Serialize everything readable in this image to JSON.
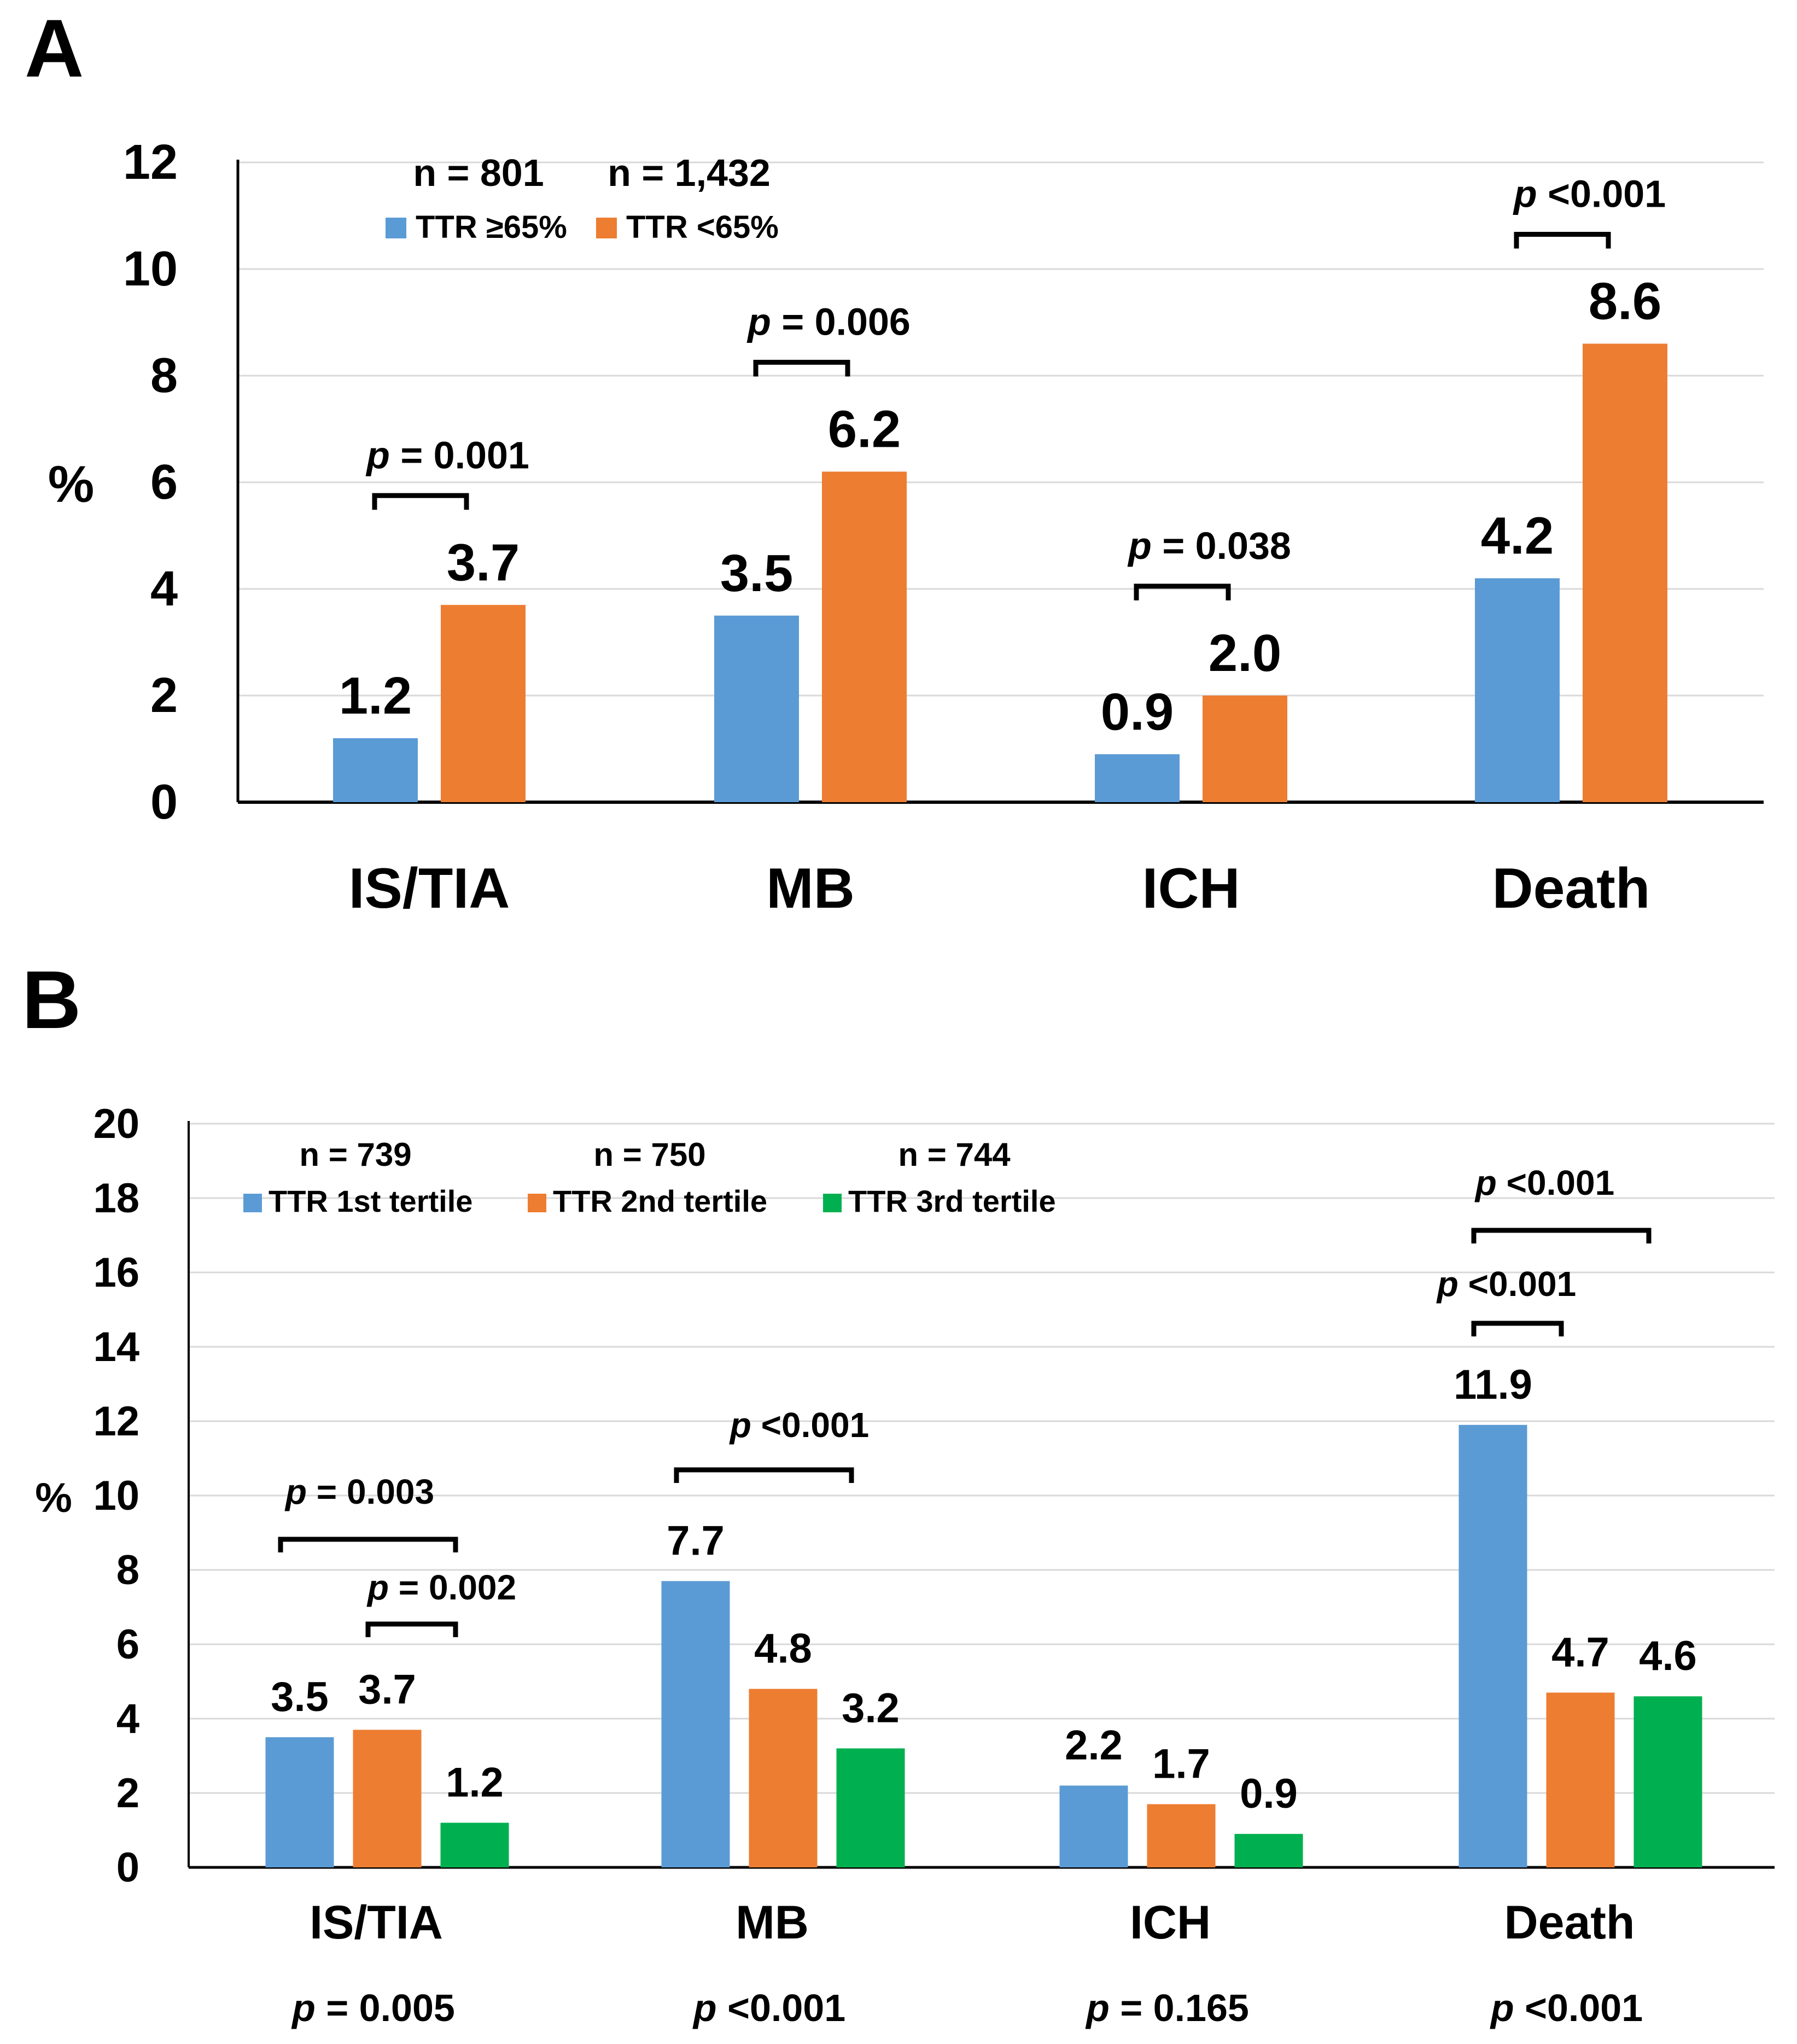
{
  "panels": {
    "a": {
      "letter": "A"
    },
    "b": {
      "letter": "B"
    }
  },
  "chart_data": [
    {
      "type": "bar",
      "panel": "A",
      "ylabel": "%",
      "ylim": [
        0,
        12
      ],
      "yticks": [
        "0",
        "2",
        "4",
        "6",
        "8",
        "10",
        "12"
      ],
      "grid": true,
      "legend_position": "top-left",
      "categories": [
        "IS/TIA",
        "MB",
        "ICH",
        "Death"
      ],
      "series": [
        {
          "name": "TTR ≥65%",
          "n": "n = 801",
          "color": "#5B9BD5",
          "values": [
            1.2,
            3.5,
            0.9,
            4.2
          ],
          "labels": [
            "1.2",
            "3.5",
            "0.9",
            "4.2"
          ]
        },
        {
          "name": "TTR <65%",
          "n": "n = 1,432",
          "color": "#ED7D31",
          "values": [
            3.7,
            6.2,
            2.0,
            8.6
          ],
          "labels": [
            "3.7",
            "6.2",
            "2.0",
            "8.6"
          ]
        }
      ],
      "comparisons": [
        {
          "category": "IS/TIA",
          "p_letter": "p",
          "p_rest": " = 0.001"
        },
        {
          "category": "MB",
          "p_letter": "p",
          "p_rest": " = 0.006"
        },
        {
          "category": "ICH",
          "p_letter": "p",
          "p_rest": " = 0.038"
        },
        {
          "category": "Death",
          "p_letter": "p",
          "p_rest": " <0.001"
        }
      ]
    },
    {
      "type": "bar",
      "panel": "B",
      "ylabel": "%",
      "ylim": [
        0,
        20
      ],
      "yticks": [
        "0",
        "2",
        "4",
        "6",
        "8",
        "10",
        "12",
        "14",
        "16",
        "18",
        "20"
      ],
      "grid": true,
      "legend_position": "top-left",
      "categories": [
        "IS/TIA",
        "MB",
        "ICH",
        "Death"
      ],
      "series": [
        {
          "name": "TTR 1st tertile",
          "n": "n = 739",
          "color": "#5B9BD5",
          "values": [
            3.5,
            7.7,
            2.2,
            11.9
          ],
          "labels": [
            "3.5",
            "7.7",
            "2.2",
            "11.9"
          ]
        },
        {
          "name": "TTR 2nd tertile",
          "n": "n = 750",
          "color": "#ED7D31",
          "values": [
            3.7,
            4.8,
            1.7,
            4.7
          ],
          "labels": [
            "3.7",
            "4.8",
            "1.7",
            "4.7"
          ]
        },
        {
          "name": "TTR 3rd tertile",
          "n": "n = 744",
          "color": "#00B050",
          "values": [
            1.2,
            3.2,
            0.9,
            4.6
          ],
          "labels": [
            "1.2",
            "3.2",
            "0.9",
            "4.6"
          ]
        }
      ],
      "comparisons": [
        {
          "category": "IS/TIA",
          "pair": "1st vs 3rd",
          "p_letter": "p",
          "p_rest": " = 0.003"
        },
        {
          "category": "IS/TIA",
          "pair": "2nd vs 3rd",
          "p_letter": "p",
          "p_rest": " = 0.002"
        },
        {
          "category": "MB",
          "pair": "1st vs 3rd",
          "p_letter": "p",
          "p_rest": " <0.001"
        },
        {
          "category": "Death",
          "pair": "1st vs 2nd",
          "p_letter": "p",
          "p_rest": " <0.001"
        },
        {
          "category": "Death",
          "pair": "1st vs 3rd",
          "p_letter": "p",
          "p_rest": " <0.001"
        }
      ],
      "overall_p": [
        {
          "p_letter": "p",
          "p_rest": " = 0.005"
        },
        {
          "p_letter": "p",
          "p_rest": " <0.001"
        },
        {
          "p_letter": "p",
          "p_rest": " = 0.165"
        },
        {
          "p_letter": "p",
          "p_rest": " <0.001"
        }
      ]
    }
  ]
}
